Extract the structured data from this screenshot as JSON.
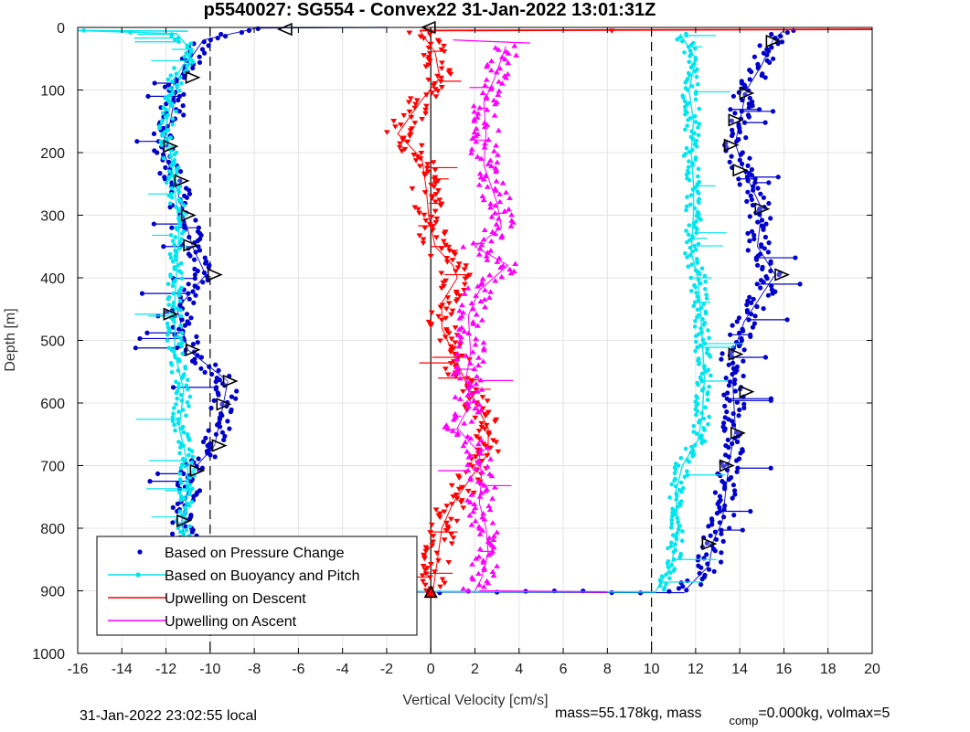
{
  "chart_data": {
    "type": "scatter",
    "title": "p5540027: SG554 - Convex22 31-Jan-2022 13:01:31Z",
    "xlabel": "Vertical Velocity [cm/s]",
    "ylabel": "Depth [m]",
    "xlim": [
      -16,
      20
    ],
    "ylim": [
      0,
      1000
    ],
    "y_reversed": true,
    "grid": true,
    "x_ticks": [
      -16,
      -14,
      -12,
      -10,
      -8,
      -6,
      -4,
      -2,
      0,
      2,
      4,
      6,
      8,
      10,
      12,
      14,
      16,
      18,
      20
    ],
    "y_ticks": [
      0,
      100,
      200,
      300,
      400,
      500,
      600,
      700,
      800,
      900,
      1000
    ],
    "reference_lines": [
      {
        "x": -10,
        "style": "dashed"
      },
      {
        "x": 0,
        "style": "solid"
      },
      {
        "x": 10,
        "style": "dashed"
      }
    ],
    "legend_position": "bottom-left",
    "series": [
      {
        "name": "Based on Pressure Change",
        "color": "#0000cc",
        "marker": "dot",
        "descent": [
          [
            -8,
            2
          ],
          [
            -10.3,
            20
          ],
          [
            -10.8,
            45
          ],
          [
            -11.4,
            80
          ],
          [
            -11.6,
            110
          ],
          [
            -11.8,
            150
          ],
          [
            -12.2,
            190
          ],
          [
            -11.6,
            245
          ],
          [
            -11.2,
            300
          ],
          [
            -10.8,
            350
          ],
          [
            -10.2,
            395
          ],
          [
            -11.5,
            450
          ],
          [
            -11.0,
            515
          ],
          [
            -9.2,
            565
          ],
          [
            -9.4,
            602
          ],
          [
            -9.8,
            668
          ],
          [
            -10.8,
            708
          ],
          [
            -11.3,
            790
          ],
          [
            -10.8,
            870
          ],
          [
            -11.0,
            898
          ]
        ],
        "ascent": [
          [
            11.5,
            900
          ],
          [
            12.6,
            860
          ],
          [
            12.8,
            820
          ],
          [
            13.2,
            790
          ],
          [
            13.5,
            700
          ],
          [
            13.8,
            640
          ],
          [
            13.7,
            580
          ],
          [
            13.7,
            520
          ],
          [
            14.2,
            470
          ],
          [
            15.6,
            395
          ],
          [
            14.8,
            350
          ],
          [
            15.0,
            290
          ],
          [
            14.2,
            230
          ],
          [
            13.8,
            185
          ],
          [
            14.0,
            150
          ],
          [
            14.3,
            100
          ],
          [
            15.0,
            60
          ],
          [
            15.5,
            20
          ],
          [
            16.0,
            5
          ]
        ]
      },
      {
        "name": "Based on Buoyancy and Pitch",
        "color": "#00e5ee",
        "marker": "line",
        "descent": [
          [
            -16,
            5
          ],
          [
            -11.5,
            10
          ],
          [
            -10.8,
            40
          ],
          [
            -11.6,
            80
          ],
          [
            -11.8,
            120
          ],
          [
            -12.0,
            160
          ],
          [
            -11.8,
            200
          ],
          [
            -11.6,
            260
          ],
          [
            -11.4,
            320
          ],
          [
            -11.5,
            380
          ],
          [
            -11.6,
            440
          ],
          [
            -11.6,
            520
          ],
          [
            -11.2,
            580
          ],
          [
            -11.4,
            640
          ],
          [
            -11.0,
            700
          ],
          [
            -11.1,
            760
          ],
          [
            -11.3,
            820
          ],
          [
            -11.0,
            880
          ],
          [
            -11.5,
            898
          ]
        ],
        "ascent": [
          [
            10.2,
            900
          ],
          [
            10.9,
            860
          ],
          [
            11.2,
            800
          ],
          [
            11.1,
            740
          ],
          [
            11.4,
            700
          ],
          [
            12.1,
            660
          ],
          [
            12.3,
            620
          ],
          [
            12.4,
            560
          ],
          [
            12.3,
            500
          ],
          [
            12.2,
            440
          ],
          [
            12.1,
            400
          ],
          [
            11.8,
            360
          ],
          [
            11.9,
            300
          ],
          [
            11.9,
            250
          ],
          [
            11.8,
            200
          ],
          [
            11.9,
            150
          ],
          [
            11.7,
            100
          ],
          [
            12.0,
            50
          ],
          [
            11.3,
            10
          ]
        ]
      },
      {
        "name": "Upwelling on Descent",
        "color": "#ff0000",
        "marker": "triangle-down",
        "points": [
          [
            -0.5,
            5
          ],
          [
            0.2,
            40
          ],
          [
            0.4,
            80
          ],
          [
            -0.5,
            120
          ],
          [
            -1.5,
            170
          ],
          [
            -0.4,
            210
          ],
          [
            -0.2,
            260
          ],
          [
            -0.1,
            300
          ],
          [
            0.2,
            350
          ],
          [
            1.0,
            380
          ],
          [
            1.2,
            400
          ],
          [
            0.5,
            440
          ],
          [
            0.5,
            480
          ],
          [
            1.0,
            520
          ],
          [
            1.5,
            560
          ],
          [
            2.0,
            600
          ],
          [
            2.6,
            640
          ],
          [
            2.6,
            680
          ],
          [
            1.8,
            720
          ],
          [
            1.0,
            760
          ],
          [
            0.5,
            800
          ],
          [
            0.3,
            850
          ],
          [
            0.1,
            900
          ]
        ]
      },
      {
        "name": "Upwelling on Ascent",
        "color": "#ff00ff",
        "marker": "triangle-up",
        "points": [
          [
            3.4,
            30
          ],
          [
            2.9,
            80
          ],
          [
            2.4,
            120
          ],
          [
            2.5,
            170
          ],
          [
            2.4,
            220
          ],
          [
            3.0,
            280
          ],
          [
            3.2,
            320
          ],
          [
            2.0,
            350
          ],
          [
            3.5,
            380
          ],
          [
            2.2,
            420
          ],
          [
            1.7,
            460
          ],
          [
            1.8,
            520
          ],
          [
            1.6,
            560
          ],
          [
            1.8,
            600
          ],
          [
            1.2,
            640
          ],
          [
            2.2,
            680
          ],
          [
            2.3,
            720
          ],
          [
            2.2,
            760
          ],
          [
            2.5,
            800
          ],
          [
            2.6,
            840
          ],
          [
            2.3,
            880
          ],
          [
            2.0,
            900
          ]
        ]
      }
    ],
    "markers": [
      {
        "shape": "left",
        "x": -6.6,
        "y": 3
      },
      {
        "shape": "left",
        "x": -0.1,
        "y": 0
      },
      {
        "shape": "up",
        "x": -11.4,
        "y": 898,
        "fill": "#ff0000"
      },
      {
        "shape": "up",
        "x": 0.0,
        "y": 903,
        "fill": "#ff0000"
      },
      {
        "shape": "right",
        "x": -10.8,
        "y": 80
      },
      {
        "shape": "right",
        "x": -11.8,
        "y": 190
      },
      {
        "shape": "right",
        "x": -11.3,
        "y": 245
      },
      {
        "shape": "right",
        "x": -11.0,
        "y": 300
      },
      {
        "shape": "right",
        "x": -10.9,
        "y": 348
      },
      {
        "shape": "right",
        "x": -9.8,
        "y": 395
      },
      {
        "shape": "right",
        "x": -11.8,
        "y": 458
      },
      {
        "shape": "right",
        "x": -10.8,
        "y": 515
      },
      {
        "shape": "right",
        "x": -9.1,
        "y": 565
      },
      {
        "shape": "right",
        "x": -9.4,
        "y": 602
      },
      {
        "shape": "right",
        "x": -9.6,
        "y": 668
      },
      {
        "shape": "right",
        "x": -10.6,
        "y": 708
      },
      {
        "shape": "right",
        "x": -11.2,
        "y": 788
      },
      {
        "shape": "right",
        "x": -10.8,
        "y": 870
      },
      {
        "shape": "right",
        "x": 15.5,
        "y": 22
      },
      {
        "shape": "right",
        "x": 14.3,
        "y": 105
      },
      {
        "shape": "right",
        "x": 13.8,
        "y": 148
      },
      {
        "shape": "right",
        "x": 13.6,
        "y": 188
      },
      {
        "shape": "right",
        "x": 14.0,
        "y": 228
      },
      {
        "shape": "right",
        "x": 15.0,
        "y": 290
      },
      {
        "shape": "right",
        "x": 15.9,
        "y": 395
      },
      {
        "shape": "right",
        "x": 13.8,
        "y": 522
      },
      {
        "shape": "right",
        "x": 14.3,
        "y": 582
      },
      {
        "shape": "right",
        "x": 13.9,
        "y": 648
      },
      {
        "shape": "right",
        "x": 13.4,
        "y": 700
      },
      {
        "shape": "right",
        "x": 12.6,
        "y": 825
      }
    ]
  },
  "footer": {
    "local_time": "31-Jan-2022 23:02:55 local",
    "mass_text": "mass=55.178kg, mass",
    "comp_sub": "comp",
    "comp_text": "=0.000kg, volmax=5"
  }
}
